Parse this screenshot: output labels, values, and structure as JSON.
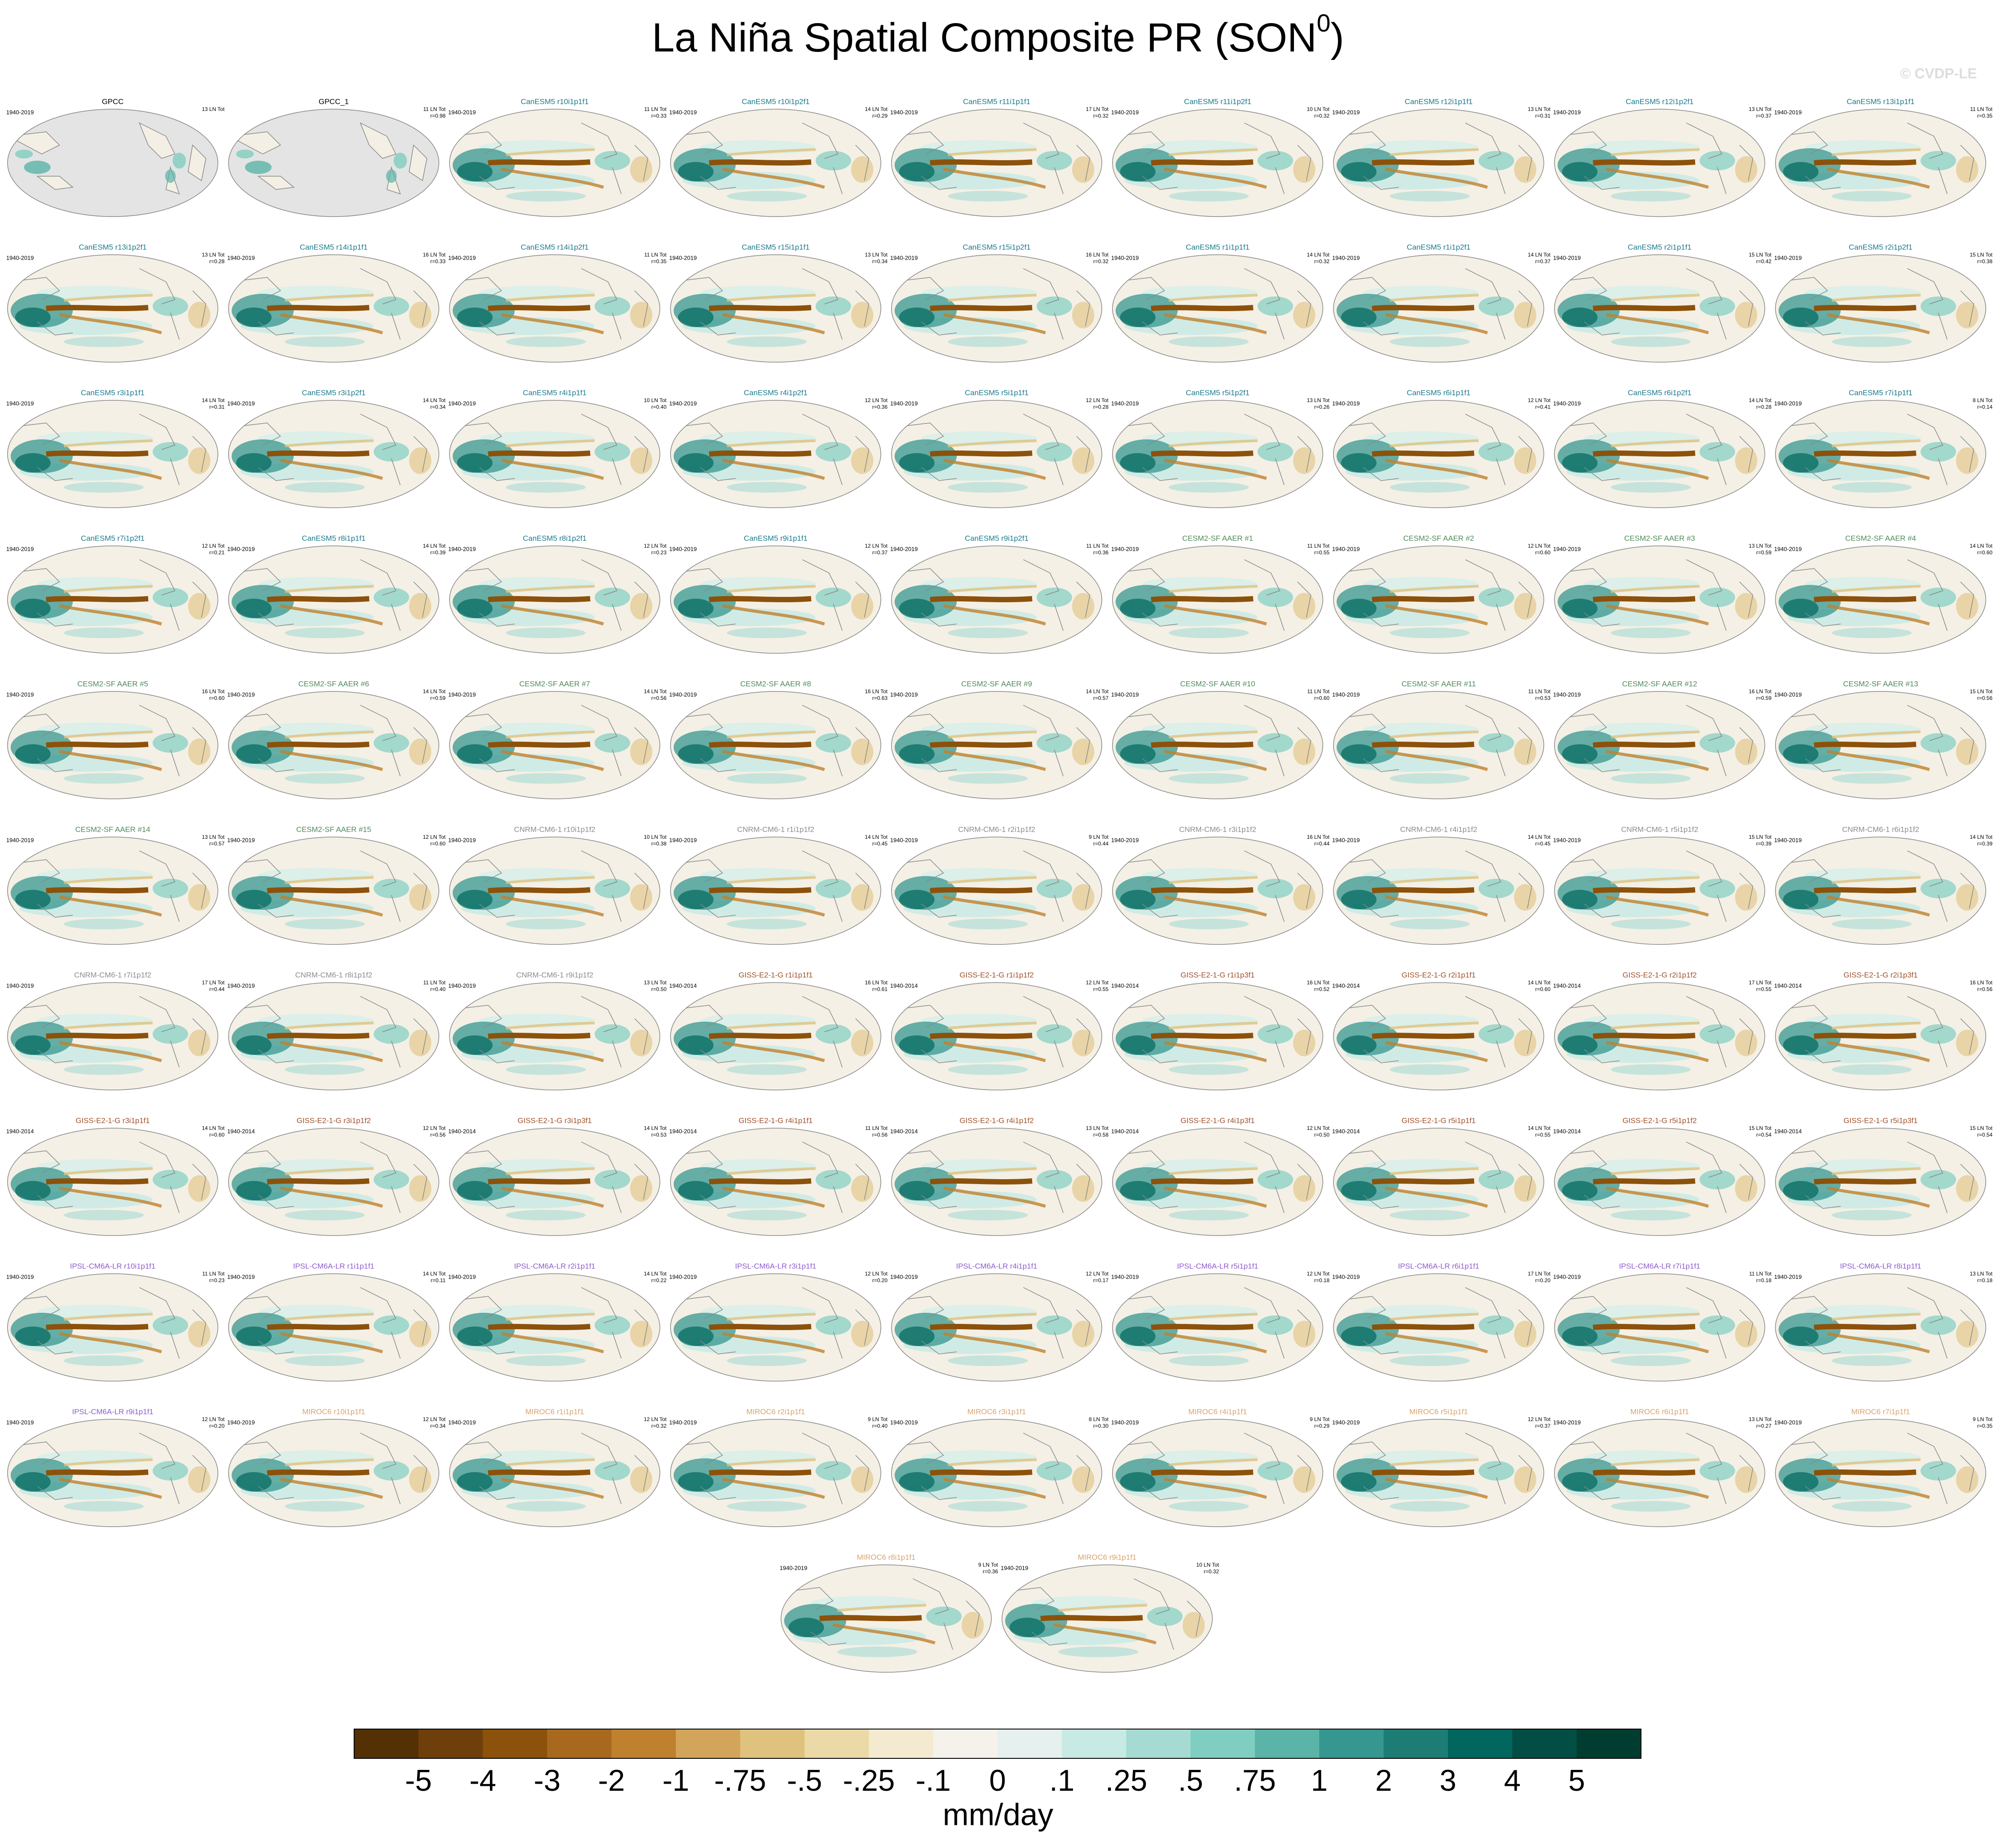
{
  "header": {
    "title": "La Niña Spatial Composite PR (SON",
    "title_sup": "0",
    "title_end": ")",
    "credit": "© CVDP-LE"
  },
  "panels": [
    {
      "title": "GPCC",
      "period": "1940-2019",
      "count": "13 LN Tot",
      "color": "#000000",
      "obs": true
    },
    {
      "title": "GPCC_1",
      "count": "11 LN Tot",
      "r": "r=0.98",
      "color": "#000000",
      "obs": true
    },
    {
      "title": "CanESM5 r10i1p1f1",
      "period": "1940-2019",
      "count": "11 LN Tot",
      "r": "r=0.33",
      "color": "#1b7a8c"
    },
    {
      "title": "CanESM5 r10i1p2f1",
      "period": "1940-2019",
      "count": "14 LN Tot",
      "r": "r=0.29",
      "color": "#1b7a8c"
    },
    {
      "title": "CanESM5 r11i1p1f1",
      "period": "1940-2019",
      "count": "17 LN Tot",
      "r": "r=0.32",
      "color": "#1b7a8c"
    },
    {
      "title": "CanESM5 r11i1p2f1",
      "period": "1940-2019",
      "count": "10 LN Tot",
      "r": "r=0.32",
      "color": "#1b7a8c"
    },
    {
      "title": "CanESM5 r12i1p1f1",
      "period": "1940-2019",
      "count": "13 LN Tot",
      "r": "r=0.31",
      "color": "#1b7a8c"
    },
    {
      "title": "CanESM5 r12i1p2f1",
      "period": "1940-2019",
      "count": "13 LN Tot",
      "r": "r=0.37",
      "color": "#1b7a8c"
    },
    {
      "title": "CanESM5 r13i1p1f1",
      "period": "1940-2019",
      "count": "11 LN Tot",
      "r": "r=0.35",
      "color": "#1b7a8c"
    },
    {
      "title": "CanESM5 r13i1p2f1",
      "period": "1940-2019",
      "count": "13 LN Tot",
      "r": "r=0.28",
      "color": "#1b7a8c"
    },
    {
      "title": "CanESM5 r14i1p1f1",
      "period": "1940-2019",
      "count": "16 LN Tot",
      "r": "r=0.33",
      "color": "#1b7a8c"
    },
    {
      "title": "CanESM5 r14i1p2f1",
      "period": "1940-2019",
      "count": "11 LN Tot",
      "r": "r=0.35",
      "color": "#1b7a8c"
    },
    {
      "title": "CanESM5 r15i1p1f1",
      "period": "1940-2019",
      "count": "13 LN Tot",
      "r": "r=0.34",
      "color": "#1b7a8c"
    },
    {
      "title": "CanESM5 r15i1p2f1",
      "period": "1940-2019",
      "count": "16 LN Tot",
      "r": "r=0.32",
      "color": "#1b7a8c"
    },
    {
      "title": "CanESM5 r1i1p1f1",
      "period": "1940-2019",
      "count": "14 LN Tot",
      "r": "r=0.32",
      "color": "#1b7a8c"
    },
    {
      "title": "CanESM5 r1i1p2f1",
      "period": "1940-2019",
      "count": "14 LN Tot",
      "r": "r=0.37",
      "color": "#1b7a8c"
    },
    {
      "title": "CanESM5 r2i1p1f1",
      "period": "1940-2019",
      "count": "15 LN Tot",
      "r": "r=0.42",
      "color": "#1b7a8c"
    },
    {
      "title": "CanESM5 r2i1p2f1",
      "period": "1940-2019",
      "count": "15 LN Tot",
      "r": "r=0.38",
      "color": "#1b7a8c"
    },
    {
      "title": "CanESM5 r3i1p1f1",
      "period": "1940-2019",
      "count": "14 LN Tot",
      "r": "r=0.31",
      "color": "#1b7a8c"
    },
    {
      "title": "CanESM5 r3i1p2f1",
      "period": "1940-2019",
      "count": "14 LN Tot",
      "r": "r=0.34",
      "color": "#1b7a8c"
    },
    {
      "title": "CanESM5 r4i1p1f1",
      "period": "1940-2019",
      "count": "10 LN Tot",
      "r": "r=0.40",
      "color": "#1b7a8c"
    },
    {
      "title": "CanESM5 r4i1p2f1",
      "period": "1940-2019",
      "count": "12 LN Tot",
      "r": "r=0.36",
      "color": "#1b7a8c"
    },
    {
      "title": "CanESM5 r5i1p1f1",
      "period": "1940-2019",
      "count": "12 LN Tot",
      "r": "r=0.28",
      "color": "#1b7a8c"
    },
    {
      "title": "CanESM5 r5i1p2f1",
      "period": "1940-2019",
      "count": "13 LN Tot",
      "r": "r=0.26",
      "color": "#1b7a8c"
    },
    {
      "title": "CanESM5 r6i1p1f1",
      "period": "1940-2019",
      "count": "12 LN Tot",
      "r": "r=0.41",
      "color": "#1b7a8c"
    },
    {
      "title": "CanESM5 r6i1p2f1",
      "period": "1940-2019",
      "count": "14 LN Tot",
      "r": "r=0.28",
      "color": "#1b7a8c"
    },
    {
      "title": "CanESM5 r7i1p1f1",
      "period": "1940-2019",
      "count": "8 LN Tot",
      "r": "r=0.14",
      "color": "#1b7a8c"
    },
    {
      "title": "CanESM5 r7i1p2f1",
      "period": "1940-2019",
      "count": "12 LN Tot",
      "r": "r=0.21",
      "color": "#1b7a8c"
    },
    {
      "title": "CanESM5 r8i1p1f1",
      "period": "1940-2019",
      "count": "14 LN Tot",
      "r": "r=0.39",
      "color": "#1b7a8c"
    },
    {
      "title": "CanESM5 r8i1p2f1",
      "period": "1940-2019",
      "count": "12 LN Tot",
      "r": "r=0.23",
      "color": "#1b7a8c"
    },
    {
      "title": "CanESM5 r9i1p1f1",
      "period": "1940-2019",
      "count": "12 LN Tot",
      "r": "r=0.37",
      "color": "#1b7a8c"
    },
    {
      "title": "CanESM5 r9i1p2f1",
      "period": "1940-2019",
      "count": "11 LN Tot",
      "r": "r=0.36",
      "color": "#1b7a8c"
    },
    {
      "title": "CESM2-SF AAER #1",
      "period": "1940-2019",
      "count": "11 LN Tot",
      "r": "r=0.55",
      "color": "#4f8a5b"
    },
    {
      "title": "CESM2-SF AAER #2",
      "period": "1940-2019",
      "count": "12 LN Tot",
      "r": "r=0.60",
      "color": "#4f8a5b"
    },
    {
      "title": "CESM2-SF AAER #3",
      "period": "1940-2019",
      "count": "13 LN Tot",
      "r": "r=0.59",
      "color": "#4f8a5b"
    },
    {
      "title": "CESM2-SF AAER #4",
      "period": "1940-2019",
      "count": "14 LN Tot",
      "r": "r=0.60",
      "color": "#4f8a5b"
    },
    {
      "title": "CESM2-SF AAER #5",
      "period": "1940-2019",
      "count": "16 LN Tot",
      "r": "r=0.60",
      "color": "#4f8a5b"
    },
    {
      "title": "CESM2-SF AAER #6",
      "period": "1940-2019",
      "count": "14 LN Tot",
      "r": "r=0.59",
      "color": "#4f8a5b"
    },
    {
      "title": "CESM2-SF AAER #7",
      "period": "1940-2019",
      "count": "14 LN Tot",
      "r": "r=0.56",
      "color": "#4f8a5b"
    },
    {
      "title": "CESM2-SF AAER #8",
      "period": "1940-2019",
      "count": "16 LN Tot",
      "r": "r=0.63",
      "color": "#4f8a5b"
    },
    {
      "title": "CESM2-SF AAER #9",
      "period": "1940-2019",
      "count": "14 LN Tot",
      "r": "r=0.57",
      "color": "#4f8a5b"
    },
    {
      "title": "CESM2-SF AAER #10",
      "period": "1940-2019",
      "count": "11 LN Tot",
      "r": "r=0.60",
      "color": "#4f8a5b"
    },
    {
      "title": "CESM2-SF AAER #11",
      "period": "1940-2019",
      "count": "11 LN Tot",
      "r": "r=0.53",
      "color": "#4f8a5b"
    },
    {
      "title": "CESM2-SF AAER #12",
      "period": "1940-2019",
      "count": "16 LN Tot",
      "r": "r=0.59",
      "color": "#4f8a5b"
    },
    {
      "title": "CESM2-SF AAER #13",
      "period": "1940-2019",
      "count": "15 LN Tot",
      "r": "r=0.56",
      "color": "#4f8a5b"
    },
    {
      "title": "CESM2-SF AAER #14",
      "period": "1940-2019",
      "count": "13 LN Tot",
      "r": "r=0.57",
      "color": "#4f8a5b"
    },
    {
      "title": "CESM2-SF AAER #15",
      "period": "1940-2019",
      "count": "12 LN Tot",
      "r": "r=0.60",
      "color": "#4f8a5b"
    },
    {
      "title": "CNRM-CM6-1 r10i1p1f2",
      "period": "1940-2019",
      "count": "10 LN Tot",
      "r": "r=0.38",
      "color": "#8c8c8c"
    },
    {
      "title": "CNRM-CM6-1 r1i1p1f2",
      "period": "1940-2019",
      "count": "14 LN Tot",
      "r": "r=0.45",
      "color": "#8c8c8c"
    },
    {
      "title": "CNRM-CM6-1 r2i1p1f2",
      "period": "1940-2019",
      "count": "9 LN Tot",
      "r": "r=0.44",
      "color": "#8c8c8c"
    },
    {
      "title": "CNRM-CM6-1 r3i1p1f2",
      "period": "1940-2019",
      "count": "16 LN Tot",
      "r": "r=0.44",
      "color": "#8c8c8c"
    },
    {
      "title": "CNRM-CM6-1 r4i1p1f2",
      "period": "1940-2019",
      "count": "14 LN Tot",
      "r": "r=0.45",
      "color": "#8c8c8c"
    },
    {
      "title": "CNRM-CM6-1 r5i1p1f2",
      "period": "1940-2019",
      "count": "15 LN Tot",
      "r": "r=0.39",
      "color": "#8c8c8c"
    },
    {
      "title": "CNRM-CM6-1 r6i1p1f2",
      "period": "1940-2019",
      "count": "14 LN Tot",
      "r": "r=0.39",
      "color": "#8c8c8c"
    },
    {
      "title": "CNRM-CM6-1 r7i1p1f2",
      "period": "1940-2019",
      "count": "17 LN Tot",
      "r": "r=0.44",
      "color": "#8c8c8c"
    },
    {
      "title": "CNRM-CM6-1 r8i1p1f2",
      "period": "1940-2019",
      "count": "11 LN Tot",
      "r": "r=0.40",
      "color": "#8c8c8c"
    },
    {
      "title": "CNRM-CM6-1 r9i1p1f2",
      "period": "1940-2019",
      "count": "13 LN Tot",
      "r": "r=0.50",
      "color": "#8c8c8c"
    },
    {
      "title": "GISS-E2-1-G r1i1p1f1",
      "period": "1940-2014",
      "count": "16 LN Tot",
      "r": "r=0.61",
      "color": "#a0522d"
    },
    {
      "title": "GISS-E2-1-G r1i1p1f2",
      "period": "1940-2014",
      "count": "12 LN Tot",
      "r": "r=0.55",
      "color": "#a0522d"
    },
    {
      "title": "GISS-E2-1-G r1i1p3f1",
      "period": "1940-2014",
      "count": "16 LN Tot",
      "r": "r=0.52",
      "color": "#a0522d"
    },
    {
      "title": "GISS-E2-1-G r2i1p1f1",
      "period": "1940-2014",
      "count": "14 LN Tot",
      "r": "r=0.60",
      "color": "#a0522d"
    },
    {
      "title": "GISS-E2-1-G r2i1p1f2",
      "period": "1940-2014",
      "count": "17 LN Tot",
      "r": "r=0.55",
      "color": "#a0522d"
    },
    {
      "title": "GISS-E2-1-G r2i1p3f1",
      "period": "1940-2014",
      "count": "16 LN Tot",
      "r": "r=0.56",
      "color": "#a0522d"
    },
    {
      "title": "GISS-E2-1-G r3i1p1f1",
      "period": "1940-2014",
      "count": "14 LN Tot",
      "r": "r=0.60",
      "color": "#a0522d"
    },
    {
      "title": "GISS-E2-1-G r3i1p1f2",
      "period": "1940-2014",
      "count": "12 LN Tot",
      "r": "r=0.56",
      "color": "#a0522d"
    },
    {
      "title": "GISS-E2-1-G r3i1p3f1",
      "period": "1940-2014",
      "count": "14 LN Tot",
      "r": "r=0.53",
      "color": "#a0522d"
    },
    {
      "title": "GISS-E2-1-G r4i1p1f1",
      "period": "1940-2014",
      "count": "11 LN Tot",
      "r": "r=0.56",
      "color": "#a0522d"
    },
    {
      "title": "GISS-E2-1-G r4i1p1f2",
      "period": "1940-2014",
      "count": "13 LN Tot",
      "r": "r=0.58",
      "color": "#a0522d"
    },
    {
      "title": "GISS-E2-1-G r4i1p3f1",
      "period": "1940-2014",
      "count": "12 LN Tot",
      "r": "r=0.50",
      "color": "#a0522d"
    },
    {
      "title": "GISS-E2-1-G r5i1p1f1",
      "period": "1940-2014",
      "count": "14 LN Tot",
      "r": "r=0.55",
      "color": "#a0522d"
    },
    {
      "title": "GISS-E2-1-G r5i1p1f2",
      "period": "1940-2014",
      "count": "15 LN Tot",
      "r": "r=0.54",
      "color": "#a0522d"
    },
    {
      "title": "GISS-E2-1-G r5i1p3f1",
      "period": "1940-2014",
      "count": "15 LN Tot",
      "r": "r=0.54",
      "color": "#a0522d"
    },
    {
      "title": "IPSL-CM6A-LR r10i1p1f1",
      "period": "1940-2019",
      "count": "11 LN Tot",
      "r": "r=0.23",
      "color": "#8e5ccf"
    },
    {
      "title": "IPSL-CM6A-LR r1i1p1f1",
      "period": "1940-2019",
      "count": "14 LN Tot",
      "r": "r=0.11",
      "color": "#8e5ccf"
    },
    {
      "title": "IPSL-CM6A-LR r2i1p1f1",
      "period": "1940-2019",
      "count": "14 LN Tot",
      "r": "r=0.22",
      "color": "#8e5ccf"
    },
    {
      "title": "IPSL-CM6A-LR r3i1p1f1",
      "period": "1940-2019",
      "count": "12 LN Tot",
      "r": "r=0.20",
      "color": "#8e5ccf"
    },
    {
      "title": "IPSL-CM6A-LR r4i1p1f1",
      "period": "1940-2019",
      "count": "12 LN Tot",
      "r": "r=0.17",
      "color": "#8e5ccf"
    },
    {
      "title": "IPSL-CM6A-LR r5i1p1f1",
      "period": "1940-2019",
      "count": "12 LN Tot",
      "r": "r=0.18",
      "color": "#8e5ccf"
    },
    {
      "title": "IPSL-CM6A-LR r6i1p1f1",
      "period": "1940-2019",
      "count": "17 LN Tot",
      "r": "r=0.20",
      "color": "#8e5ccf"
    },
    {
      "title": "IPSL-CM6A-LR r7i1p1f1",
      "period": "1940-2019",
      "count": "11 LN Tot",
      "r": "r=0.18",
      "color": "#8e5ccf"
    },
    {
      "title": "IPSL-CM6A-LR r8i1p1f1",
      "period": "1940-2019",
      "count": "13 LN Tot",
      "r": "r=0.18",
      "color": "#8e5ccf"
    },
    {
      "title": "IPSL-CM6A-LR r9i1p1f1",
      "period": "1940-2019",
      "count": "12 LN Tot",
      "r": "r=0.20",
      "color": "#8e5ccf"
    },
    {
      "title": "MIROC6 r10i1p1f1",
      "period": "1940-2019",
      "count": "12 LN Tot",
      "r": "r=0.34",
      "color": "#d9a36b"
    },
    {
      "title": "MIROC6 r1i1p1f1",
      "period": "1940-2019",
      "count": "12 LN Tot",
      "r": "r=0.32",
      "color": "#d9a36b"
    },
    {
      "title": "MIROC6 r2i1p1f1",
      "period": "1940-2019",
      "count": "9 LN Tot",
      "r": "r=0.40",
      "color": "#d9a36b"
    },
    {
      "title": "MIROC6 r3i1p1f1",
      "period": "1940-2019",
      "count": "8 LN Tot",
      "r": "r=0.30",
      "color": "#d9a36b"
    },
    {
      "title": "MIROC6 r4i1p1f1",
      "period": "1940-2019",
      "count": "9 LN Tot",
      "r": "r=0.29",
      "color": "#d9a36b"
    },
    {
      "title": "MIROC6 r5i1p1f1",
      "period": "1940-2019",
      "count": "12 LN Tot",
      "r": "r=0.37",
      "color": "#d9a36b"
    },
    {
      "title": "MIROC6 r6i1p1f1",
      "period": "1940-2019",
      "count": "13 LN Tot",
      "r": "r=0.27",
      "color": "#d9a36b"
    },
    {
      "title": "MIROC6 r7i1p1f1",
      "period": "1940-2019",
      "count": "9 LN Tot",
      "r": "r=0.35",
      "color": "#d9a36b"
    },
    {
      "title": "MIROC6 r8i1p1f1",
      "period": "1940-2019",
      "count": "9 LN Tot",
      "r": "r=0.36",
      "color": "#d9a36b"
    },
    {
      "title": "MIROC6 r9i1p1f1",
      "period": "1940-2019",
      "count": "10 LN Tot",
      "r": "r=0.32",
      "color": "#d9a36b"
    }
  ],
  "colorbar": {
    "colors": [
      "#543005",
      "#6e3f0a",
      "#8c510a",
      "#a8691e",
      "#bf812d",
      "#d2a55a",
      "#dfc27d",
      "#ecd9a8",
      "#f4ead0",
      "#f5f2ec",
      "#e6f0ee",
      "#c7eae5",
      "#a5dbd2",
      "#80cdc1",
      "#5ab4a8",
      "#35978f",
      "#1d7d74",
      "#01665e",
      "#024e45",
      "#003c30"
    ],
    "labels": [
      "-5",
      "-4",
      "-3",
      "-2",
      "-1",
      "-.75",
      "-.5",
      "-.25",
      "-.1",
      "0",
      ".1",
      ".25",
      ".5",
      ".75",
      "1",
      "2",
      "3",
      "4",
      "5"
    ],
    "units": "mm/day"
  }
}
